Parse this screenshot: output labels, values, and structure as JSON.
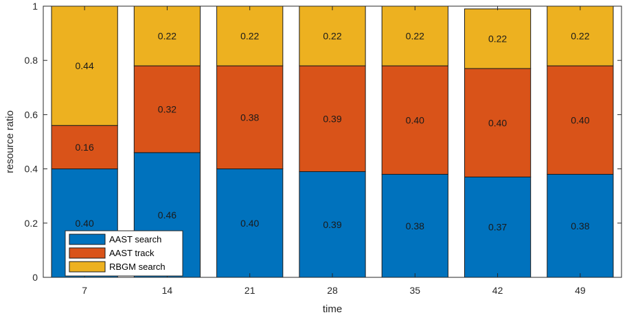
{
  "chart_data": {
    "type": "bar",
    "stacked": true,
    "categories": [
      "7",
      "14",
      "21",
      "28",
      "35",
      "42",
      "49"
    ],
    "series": [
      {
        "name": "AAST search",
        "color": "#0072BD",
        "values": [
          0.4,
          0.46,
          0.4,
          0.39,
          0.38,
          0.37,
          0.38
        ],
        "labels": [
          "0.40",
          "0.46",
          "0.40",
          "0.39",
          "0.38",
          "0.37",
          "0.38"
        ]
      },
      {
        "name": "AAST track",
        "color": "#D95319",
        "values": [
          0.16,
          0.32,
          0.38,
          0.39,
          0.4,
          0.4,
          0.4
        ],
        "labels": [
          "0.16",
          "0.32",
          "0.38",
          "0.39",
          "0.40",
          "0.40",
          "0.40"
        ]
      },
      {
        "name": "RBGM search",
        "color": "#EDB120",
        "values": [
          0.44,
          0.22,
          0.22,
          0.22,
          0.22,
          0.22,
          0.22
        ],
        "labels": [
          "0.44",
          "0.22",
          "0.22",
          "0.22",
          "0.22",
          "0.22",
          "0.22"
        ]
      }
    ],
    "xlabel": "time",
    "ylabel": "resource ratio",
    "ylim": [
      0,
      1
    ],
    "yticks": [
      0,
      0.2,
      0.4,
      0.6,
      0.8,
      1
    ],
    "ytick_labels": [
      "0",
      "0.2",
      "0.4",
      "0.6",
      "0.8",
      "1"
    ],
    "grid": false,
    "legend_position": "bottom-left"
  }
}
